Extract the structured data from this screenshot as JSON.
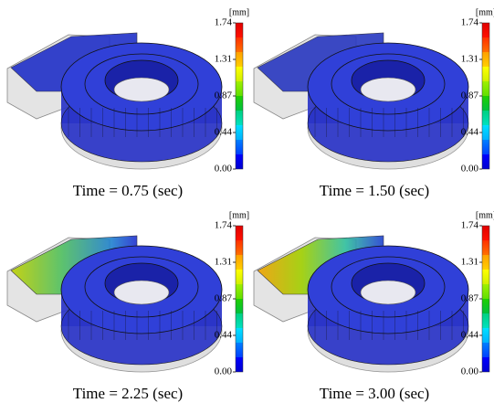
{
  "panels": [
    {
      "caption": "Time = 0.75 (sec)",
      "colorbar": {
        "unit": "[mm]",
        "ticks": [
          "1.74",
          "1.31",
          "0.87",
          "0.44",
          "0.00"
        ]
      }
    },
    {
      "caption": "Time = 1.50 (sec)",
      "colorbar": {
        "unit": "[mm]",
        "ticks": [
          "1.74",
          "1.31",
          "0.87",
          "0.44",
          "0.00"
        ]
      }
    },
    {
      "caption": "Time = 2.25 (sec)",
      "colorbar": {
        "unit": "[mm]",
        "ticks": [
          "1.74",
          "1.31",
          "0.87",
          "0.44",
          "0.00"
        ]
      }
    },
    {
      "caption": "Time = 3.00 (sec)",
      "colorbar": {
        "unit": "[mm]",
        "ticks": [
          "1.74",
          "1.31",
          "0.87",
          "0.44",
          "0.00"
        ]
      }
    }
  ]
}
